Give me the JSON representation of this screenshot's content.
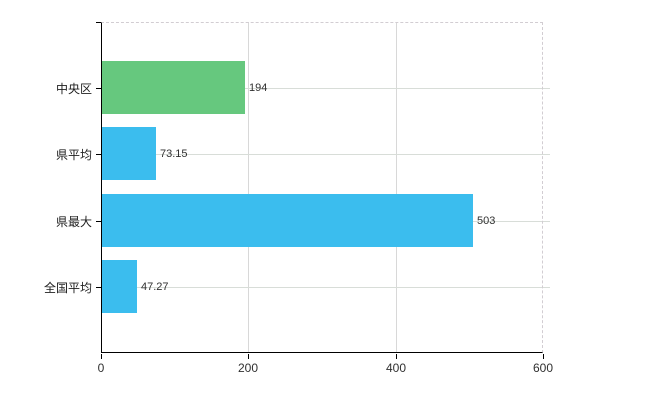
{
  "chart_data": {
    "type": "bar",
    "orientation": "horizontal",
    "categories": [
      "中央区",
      "県平均",
      "県最大",
      "全国平均"
    ],
    "values": [
      194,
      73.15,
      503,
      47.27
    ],
    "value_labels": [
      "194",
      "73.15",
      "503",
      "47.27"
    ],
    "bar_colors": [
      "#66c87e",
      "#3bbdee",
      "#3bbdee",
      "#3bbdee"
    ],
    "x_ticks": [
      0,
      200,
      400,
      600
    ],
    "x_tick_labels": [
      "0",
      "200",
      "400",
      "600"
    ],
    "xlim": [
      0,
      600
    ],
    "grid": true,
    "legend": "none"
  },
  "colors": {
    "background": "#ffffff",
    "axis": "#000000",
    "grid_solid": "#d8d8d8",
    "border_dashed": "#d2cdd2",
    "bar_green": "#66c87e",
    "bar_blue": "#3bbdee",
    "text": "#303030"
  }
}
